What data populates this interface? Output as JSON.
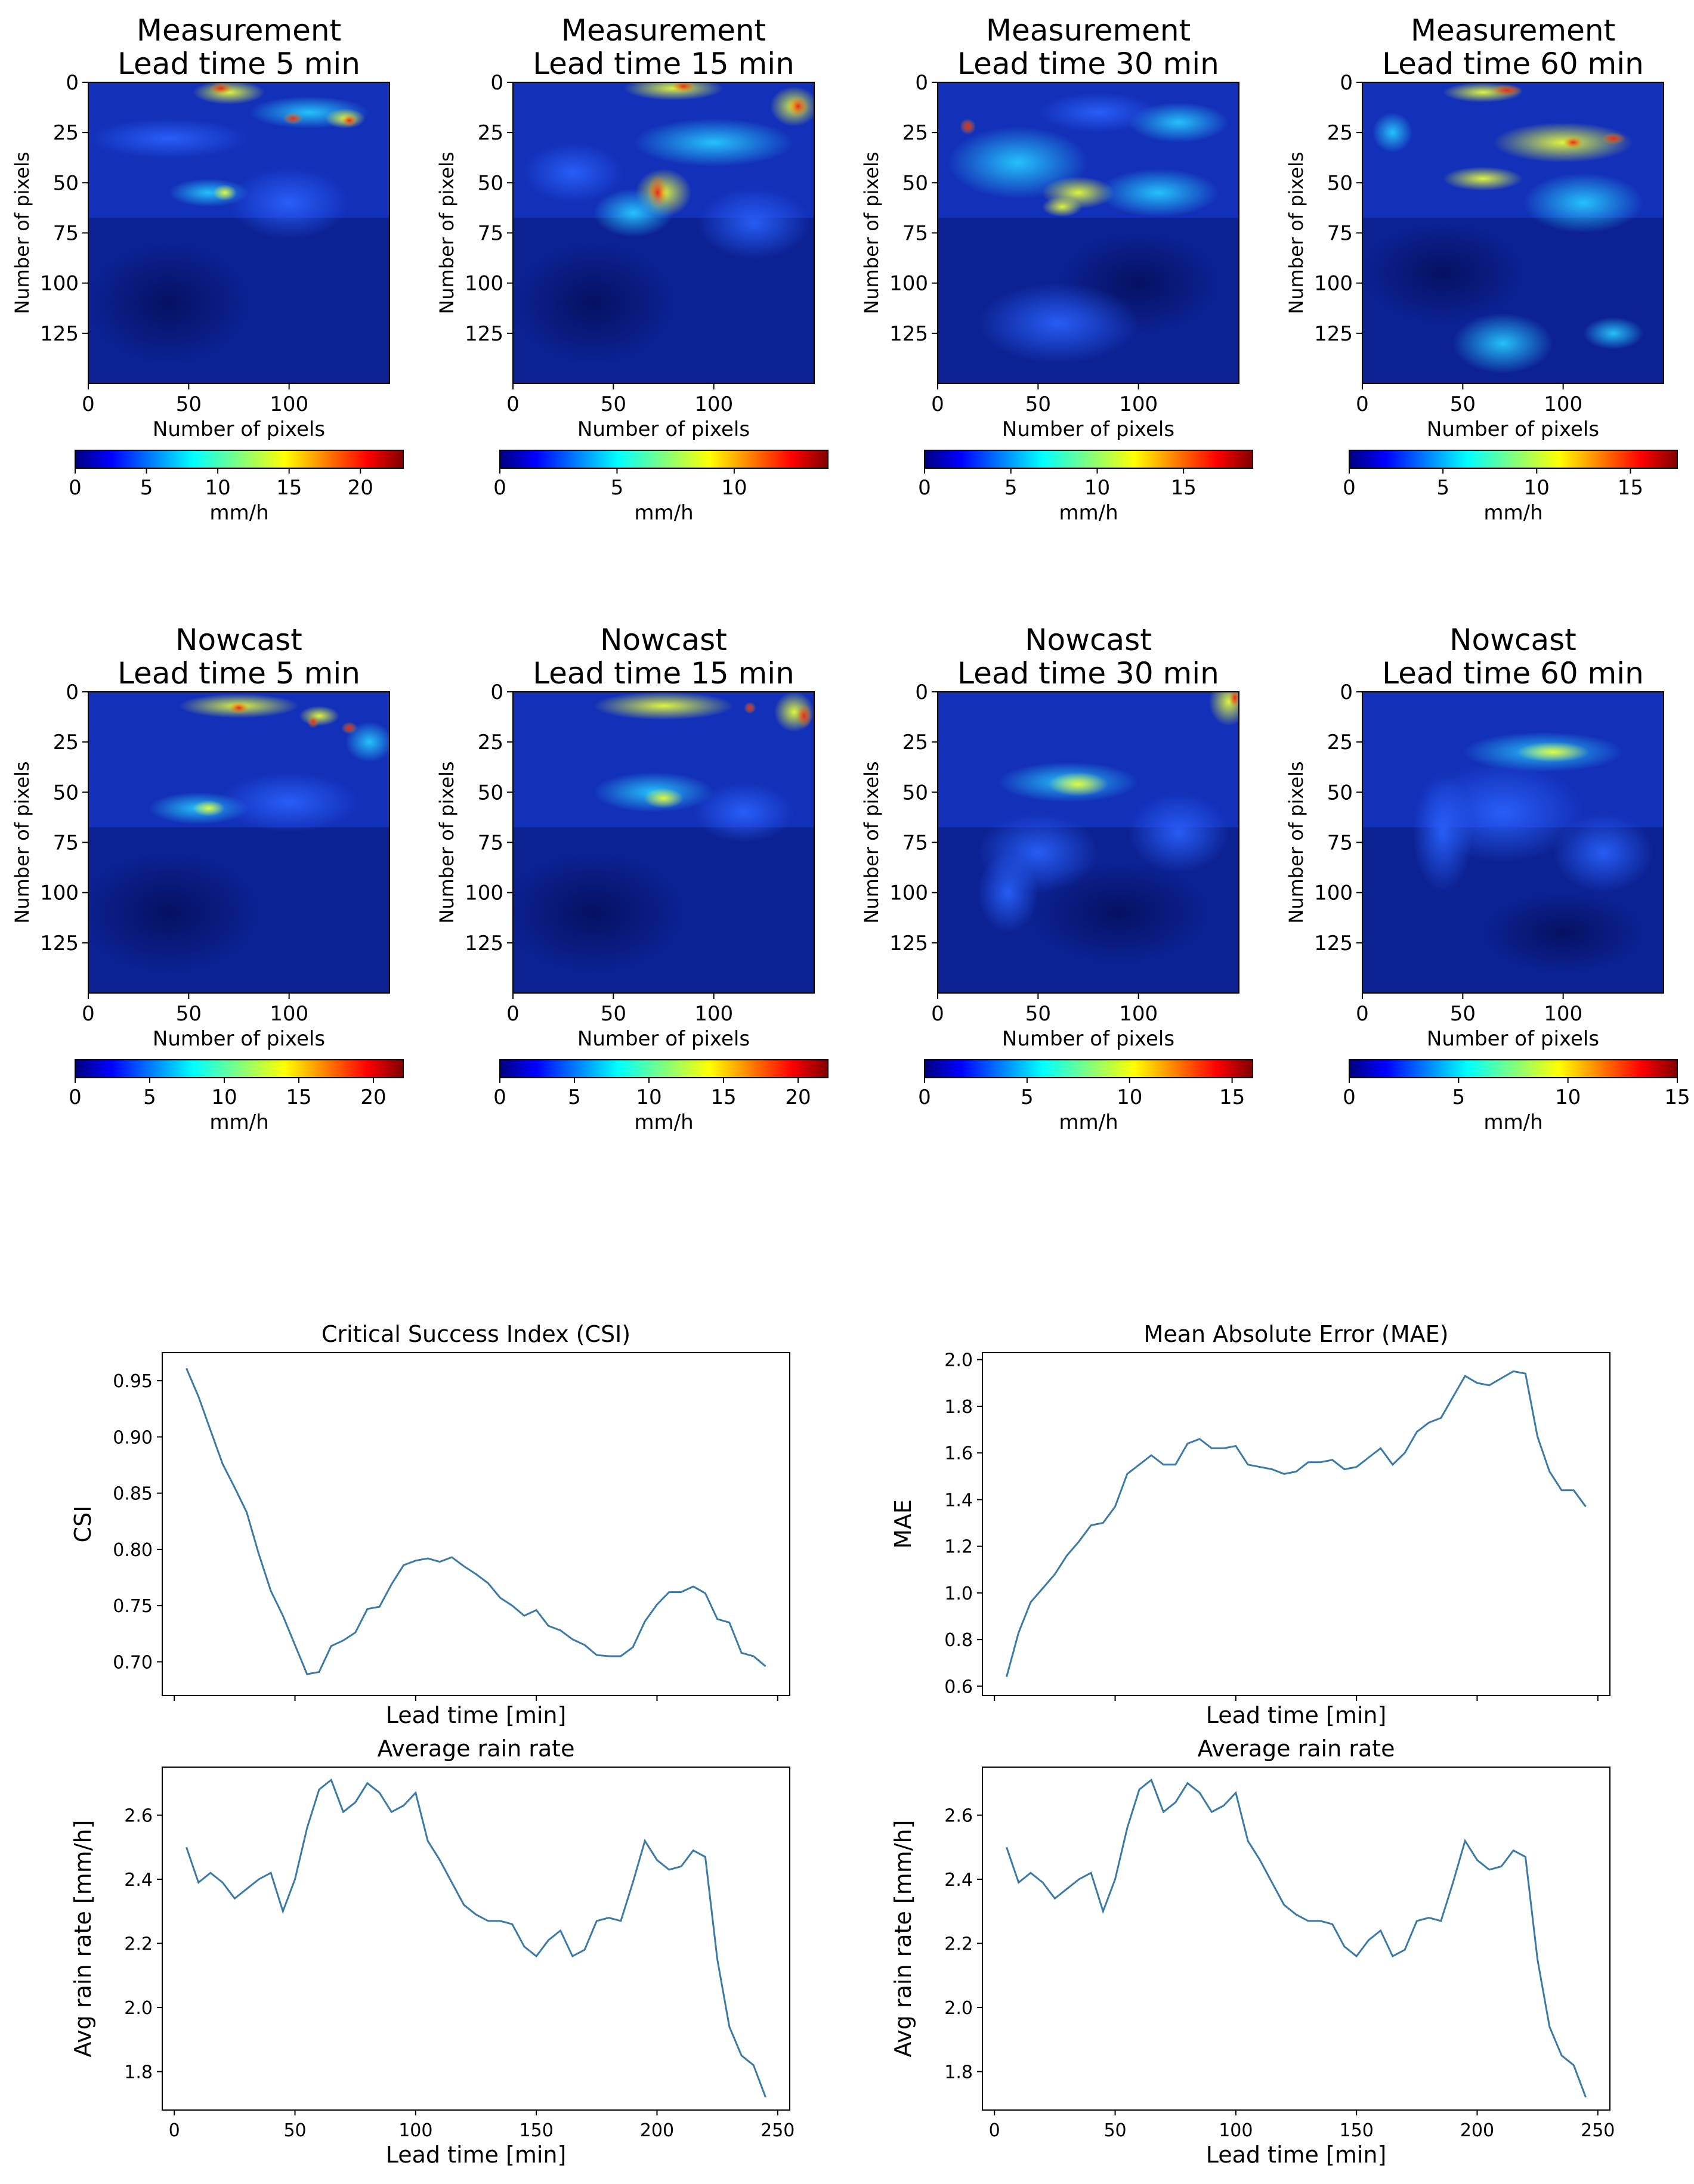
{
  "chart_data": [
    {
      "type": "heatmap",
      "title": [
        "Measurement",
        "Lead time 5 min"
      ],
      "xlabel": "Number of pixels",
      "ylabel": "Number of pixels",
      "x_ticks": [
        0,
        50,
        100
      ],
      "y_ticks": [
        0,
        25,
        50,
        75,
        100,
        125
      ],
      "colorbar": {
        "label": "mm/h",
        "min": 0,
        "max": 23,
        "ticks": [
          0,
          5,
          10,
          15,
          20
        ]
      }
    },
    {
      "type": "heatmap",
      "title": [
        "Measurement",
        "Lead time 15 min"
      ],
      "xlabel": "Number of pixels",
      "ylabel": "Number of pixels",
      "x_ticks": [
        0,
        50,
        100
      ],
      "y_ticks": [
        0,
        25,
        50,
        75,
        100,
        125
      ],
      "colorbar": {
        "label": "mm/h",
        "min": 0,
        "max": 14,
        "ticks": [
          0,
          5,
          10
        ]
      }
    },
    {
      "type": "heatmap",
      "title": [
        "Measurement",
        "Lead time 30 min"
      ],
      "xlabel": "Number of pixels",
      "ylabel": "Number of pixels",
      "x_ticks": [
        0,
        50,
        100
      ],
      "y_ticks": [
        0,
        25,
        50,
        75,
        100,
        125
      ],
      "colorbar": {
        "label": "mm/h",
        "min": 0,
        "max": 19,
        "ticks": [
          0,
          5,
          10,
          15
        ]
      }
    },
    {
      "type": "heatmap",
      "title": [
        "Measurement",
        "Lead time 60 min"
      ],
      "xlabel": "Number of pixels",
      "ylabel": "Number of pixels",
      "x_ticks": [
        0,
        50,
        100
      ],
      "y_ticks": [
        0,
        25,
        50,
        75,
        100,
        125
      ],
      "colorbar": {
        "label": "mm/h",
        "min": 0,
        "max": 17.5,
        "ticks": [
          0,
          5,
          10,
          15
        ]
      }
    },
    {
      "type": "heatmap",
      "title": [
        "Nowcast",
        "Lead time 5 min"
      ],
      "xlabel": "Number of pixels",
      "ylabel": "Number of pixels",
      "x_ticks": [
        0,
        50,
        100
      ],
      "y_ticks": [
        0,
        25,
        50,
        75,
        100,
        125
      ],
      "colorbar": {
        "label": "mm/h",
        "min": 0,
        "max": 22,
        "ticks": [
          0,
          5,
          10,
          15,
          20
        ]
      }
    },
    {
      "type": "heatmap",
      "title": [
        "Nowcast",
        "Lead time 15 min"
      ],
      "xlabel": "Number of pixels",
      "ylabel": "Number of pixels",
      "x_ticks": [
        0,
        50,
        100
      ],
      "y_ticks": [
        0,
        25,
        50,
        75,
        100,
        125
      ],
      "colorbar": {
        "label": "mm/h",
        "min": 0,
        "max": 22,
        "ticks": [
          0,
          5,
          10,
          15,
          20
        ]
      }
    },
    {
      "type": "heatmap",
      "title": [
        "Nowcast",
        "Lead time 30 min"
      ],
      "xlabel": "Number of pixels",
      "ylabel": "Number of pixels",
      "x_ticks": [
        0,
        50,
        100
      ],
      "y_ticks": [
        0,
        25,
        50,
        75,
        100,
        125
      ],
      "colorbar": {
        "label": "mm/h",
        "min": 0,
        "max": 16,
        "ticks": [
          0,
          5,
          10,
          15
        ]
      }
    },
    {
      "type": "heatmap",
      "title": [
        "Nowcast",
        "Lead time 60 min"
      ],
      "xlabel": "Number of pixels",
      "ylabel": "Number of pixels",
      "x_ticks": [
        0,
        50,
        100
      ],
      "y_ticks": [
        0,
        25,
        50,
        75,
        100,
        125
      ],
      "colorbar": {
        "label": "mm/h",
        "min": 0,
        "max": 15,
        "ticks": [
          0,
          5,
          10,
          15
        ]
      }
    },
    {
      "type": "line",
      "title": "Critical Success Index (CSI)",
      "xlabel": "Lead time [min]",
      "ylabel": "CSI",
      "xlim": [
        -5,
        255
      ],
      "ylim": [
        0.67,
        0.975
      ],
      "x_ticks": [],
      "y_ticks": [
        0.7,
        0.75,
        0.8,
        0.85,
        0.9,
        0.95
      ],
      "x": [
        5,
        10,
        15,
        20,
        25,
        30,
        35,
        40,
        45,
        50,
        55,
        60,
        65,
        70,
        75,
        80,
        85,
        90,
        95,
        100,
        105,
        110,
        115,
        120,
        125,
        130,
        135,
        140,
        145,
        150,
        155,
        160,
        165,
        170,
        175,
        180,
        185,
        190,
        195,
        200,
        205,
        210,
        215,
        220,
        225,
        230,
        235,
        240,
        245
      ],
      "y": [
        0.961,
        0.936,
        0.906,
        0.876,
        0.855,
        0.833,
        0.796,
        0.763,
        0.741,
        0.715,
        0.689,
        0.691,
        0.714,
        0.719,
        0.726,
        0.747,
        0.749,
        0.769,
        0.786,
        0.79,
        0.792,
        0.789,
        0.793,
        0.785,
        0.778,
        0.77,
        0.757,
        0.75,
        0.741,
        0.746,
        0.732,
        0.728,
        0.72,
        0.715,
        0.706,
        0.705,
        0.705,
        0.713,
        0.736,
        0.751,
        0.762,
        0.762,
        0.767,
        0.761,
        0.738,
        0.735,
        0.708,
        0.705,
        0.696
      ]
    },
    {
      "type": "line",
      "title": "Mean Absolute Error (MAE)",
      "xlabel": "Lead time [min]",
      "ylabel": "MAE",
      "xlim": [
        -5,
        255
      ],
      "ylim": [
        0.56,
        2.03
      ],
      "x_ticks": [],
      "y_ticks": [
        0.6,
        0.8,
        1.0,
        1.2,
        1.4,
        1.6,
        1.8,
        2.0
      ],
      "x": [
        5,
        10,
        15,
        20,
        25,
        30,
        35,
        40,
        45,
        50,
        55,
        60,
        65,
        70,
        75,
        80,
        85,
        90,
        95,
        100,
        105,
        110,
        115,
        120,
        125,
        130,
        135,
        140,
        145,
        150,
        155,
        160,
        165,
        170,
        175,
        180,
        185,
        190,
        195,
        200,
        205,
        210,
        215,
        220,
        225,
        230,
        235,
        240,
        245
      ],
      "y": [
        0.64,
        0.83,
        0.96,
        1.02,
        1.08,
        1.16,
        1.22,
        1.29,
        1.3,
        1.37,
        1.51,
        1.55,
        1.59,
        1.55,
        1.55,
        1.64,
        1.66,
        1.62,
        1.62,
        1.63,
        1.55,
        1.54,
        1.53,
        1.51,
        1.52,
        1.56,
        1.56,
        1.57,
        1.53,
        1.54,
        1.58,
        1.62,
        1.55,
        1.6,
        1.69,
        1.73,
        1.75,
        1.84,
        1.93,
        1.9,
        1.89,
        1.92,
        1.95,
        1.94,
        1.67,
        1.52,
        1.44,
        1.44,
        1.37
      ]
    },
    {
      "type": "line",
      "title": "Average rain rate",
      "xlabel": "Lead time [min]",
      "ylabel": "Avg rain rate [mm/h]",
      "xlim": [
        -5,
        255
      ],
      "ylim": [
        1.68,
        2.75
      ],
      "x_ticks": [
        0,
        50,
        100,
        150,
        200,
        250
      ],
      "y_ticks": [
        1.8,
        2.0,
        2.2,
        2.4,
        2.6
      ],
      "x": [
        5,
        10,
        15,
        20,
        25,
        30,
        35,
        40,
        45,
        50,
        55,
        60,
        65,
        70,
        75,
        80,
        85,
        90,
        95,
        100,
        105,
        110,
        115,
        120,
        125,
        130,
        135,
        140,
        145,
        150,
        155,
        160,
        165,
        170,
        175,
        180,
        185,
        190,
        195,
        200,
        205,
        210,
        215,
        220,
        225,
        230,
        235,
        240,
        245
      ],
      "y": [
        2.5,
        2.39,
        2.42,
        2.39,
        2.34,
        2.37,
        2.4,
        2.42,
        2.3,
        2.4,
        2.56,
        2.68,
        2.71,
        2.61,
        2.64,
        2.7,
        2.67,
        2.61,
        2.63,
        2.67,
        2.52,
        2.46,
        2.39,
        2.32,
        2.29,
        2.27,
        2.27,
        2.26,
        2.19,
        2.16,
        2.21,
        2.24,
        2.16,
        2.18,
        2.27,
        2.28,
        2.27,
        2.39,
        2.52,
        2.46,
        2.43,
        2.44,
        2.49,
        2.47,
        2.15,
        1.94,
        1.85,
        1.82,
        1.72
      ]
    },
    {
      "type": "line",
      "title": "Average rain rate",
      "xlabel": "Lead time [min]",
      "ylabel": "Avg rain rate [mm/h]",
      "xlim": [
        -5,
        255
      ],
      "ylim": [
        1.68,
        2.75
      ],
      "x_ticks": [
        0,
        50,
        100,
        150,
        200,
        250
      ],
      "y_ticks": [
        1.8,
        2.0,
        2.2,
        2.4,
        2.6
      ],
      "x": [
        5,
        10,
        15,
        20,
        25,
        30,
        35,
        40,
        45,
        50,
        55,
        60,
        65,
        70,
        75,
        80,
        85,
        90,
        95,
        100,
        105,
        110,
        115,
        120,
        125,
        130,
        135,
        140,
        145,
        150,
        155,
        160,
        165,
        170,
        175,
        180,
        185,
        190,
        195,
        200,
        205,
        210,
        215,
        220,
        225,
        230,
        235,
        240,
        245
      ],
      "y": [
        2.5,
        2.39,
        2.42,
        2.39,
        2.34,
        2.37,
        2.4,
        2.42,
        2.3,
        2.4,
        2.56,
        2.68,
        2.71,
        2.61,
        2.64,
        2.7,
        2.67,
        2.61,
        2.63,
        2.67,
        2.52,
        2.46,
        2.39,
        2.32,
        2.29,
        2.27,
        2.27,
        2.26,
        2.19,
        2.16,
        2.21,
        2.24,
        2.16,
        2.18,
        2.27,
        2.28,
        2.27,
        2.39,
        2.52,
        2.46,
        2.43,
        2.44,
        2.49,
        2.47,
        2.15,
        1.94,
        1.85,
        1.82,
        1.72
      ]
    }
  ],
  "colors": {
    "line": "#3b7aa6",
    "axis": "#000000",
    "text": "#000000",
    "map_background": "#0b1f8a"
  }
}
